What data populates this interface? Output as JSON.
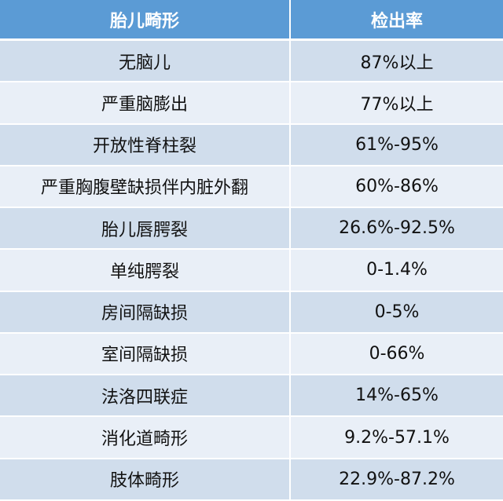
{
  "table": {
    "headers": [
      "胎儿畸形",
      "检出率"
    ],
    "rows": [
      {
        "malformation": "无脑儿",
        "rate": "87%以上"
      },
      {
        "malformation": "严重脑膨出",
        "rate": "77%以上"
      },
      {
        "malformation": "开放性脊柱裂",
        "rate": "61%-95%"
      },
      {
        "malformation": "严重胸腹壁缺损伴内脏外翻",
        "rate": "60%-86%"
      },
      {
        "malformation": "胎儿唇腭裂",
        "rate": "26.6%-92.5%"
      },
      {
        "malformation": "单纯腭裂",
        "rate": "0-1.4%"
      },
      {
        "malformation": "房间隔缺损",
        "rate": "0-5%"
      },
      {
        "malformation": "室间隔缺损",
        "rate": "0-66%"
      },
      {
        "malformation": "法洛四联症",
        "rate": "14%-65%"
      },
      {
        "malformation": "消化道畸形",
        "rate": "9.2%-57.1%"
      },
      {
        "malformation": "肢体畸形",
        "rate": "22.9%-87.2%"
      }
    ]
  },
  "colors": {
    "header_bg": "#5b9bd5",
    "row_dark": "#d0ddec",
    "row_light": "#e9eff7"
  }
}
